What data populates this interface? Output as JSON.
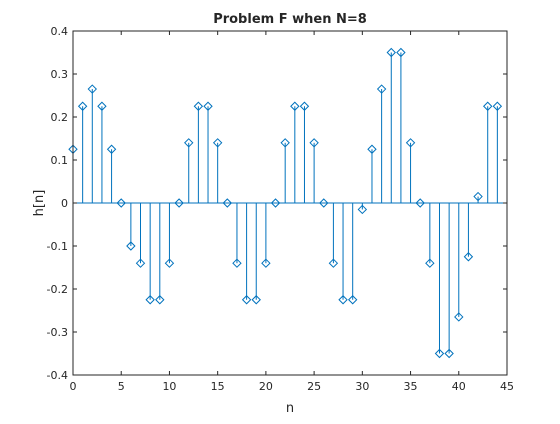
{
  "chart_data": {
    "type": "stem",
    "title": "Problem F when N=8",
    "xlabel": "n",
    "ylabel": "h[n]",
    "xlim": [
      0,
      45
    ],
    "ylim": [
      -0.4,
      0.4
    ],
    "xticks": [
      0,
      5,
      10,
      15,
      20,
      25,
      30,
      35,
      40,
      45
    ],
    "xtick_labels": [
      "0",
      "5",
      "10",
      "15",
      "20",
      "25",
      "30",
      "35",
      "40",
      "45"
    ],
    "yticks": [
      -0.4,
      -0.3,
      -0.2,
      -0.1,
      0,
      0.1,
      0.2,
      0.3,
      0.4
    ],
    "ytick_labels": [
      "-0.4",
      "-0.3",
      "-0.2",
      "-0.1",
      "0",
      "0.1",
      "0.2",
      "0.3",
      "0.4"
    ],
    "grid": false,
    "series": [
      {
        "name": "h[n]",
        "color": "#0072bd",
        "marker": "diamond-open",
        "x": [
          0,
          1,
          2,
          3,
          4,
          5,
          6,
          7,
          8,
          9,
          10,
          11,
          12,
          13,
          14,
          15,
          16,
          17,
          18,
          19,
          20,
          21,
          22,
          23,
          24,
          25,
          26,
          27,
          28,
          29,
          30,
          31,
          32,
          33,
          34,
          35,
          36,
          37,
          38,
          39,
          40,
          41,
          42,
          43,
          44
        ],
        "values": [
          0.125,
          0.225,
          0.265,
          0.225,
          0.125,
          0,
          -0.1,
          -0.14,
          -0.225,
          -0.225,
          -0.14,
          0,
          0.14,
          0.225,
          0.225,
          0.14,
          0,
          -0.14,
          -0.225,
          -0.225,
          -0.14,
          0,
          0.14,
          0.225,
          0.225,
          0.14,
          0,
          -0.14,
          -0.225,
          -0.225,
          -0.015,
          0.125,
          0.265,
          0.35,
          0.35,
          0.14,
          0,
          -0.14,
          -0.35,
          -0.35,
          -0.265,
          -0.125,
          0.015,
          0.225,
          0.225
        ]
      }
    ]
  }
}
